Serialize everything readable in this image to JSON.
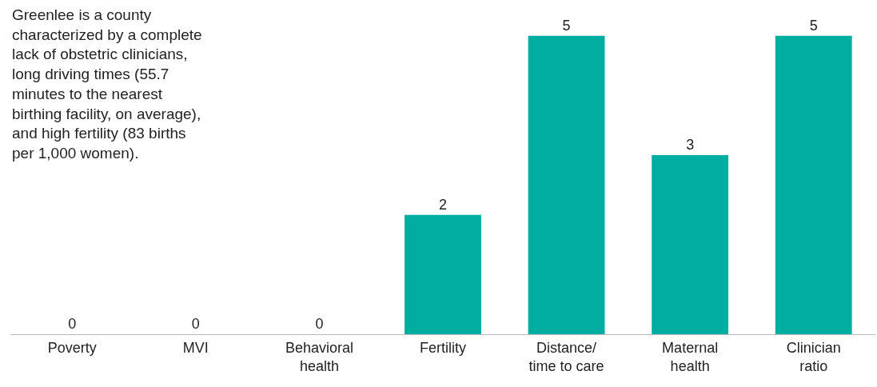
{
  "chart_data": {
    "type": "bar",
    "categories": [
      "Poverty",
      "MVI",
      "Behavioral\nhealth",
      "Fertility",
      "Distance/\ntime to care",
      "Maternal\nhealth",
      "Clinician\nratio"
    ],
    "values": [
      0,
      0,
      0,
      2,
      5,
      3,
      5
    ],
    "color": "#00ada1",
    "data_labels": true,
    "legend": false,
    "annotations": [
      "Greenlee is a county\ncharacterized by a complete\nlack of obstetric clinicians,\nlong driving times (55.7\nminutes to the nearest\nbirthing facility, on average),\nand high fertility (83 births\nper 1,000 women)."
    ]
  }
}
